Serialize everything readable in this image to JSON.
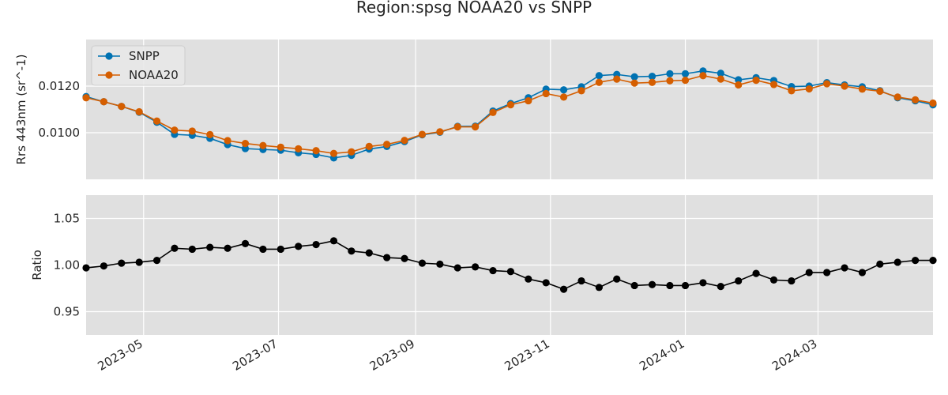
{
  "chart_data": {
    "type": "line",
    "title": "Region:spsg NOAA20 vs SNPP",
    "x": [
      "2023-04-05",
      "2023-04-13",
      "2023-04-21",
      "2023-04-29",
      "2023-05-07",
      "2023-05-15",
      "2023-05-23",
      "2023-05-31",
      "2023-06-08",
      "2023-06-16",
      "2023-06-24",
      "2023-07-02",
      "2023-07-10",
      "2023-07-18",
      "2023-07-26",
      "2023-08-03",
      "2023-08-11",
      "2023-08-19",
      "2023-08-27",
      "2023-09-04",
      "2023-09-12",
      "2023-09-20",
      "2023-09-28",
      "2023-10-06",
      "2023-10-14",
      "2023-10-22",
      "2023-10-30",
      "2023-11-07",
      "2023-11-15",
      "2023-11-23",
      "2023-12-01",
      "2023-12-09",
      "2023-12-17",
      "2023-12-25",
      "2024-01-01",
      "2024-01-09",
      "2024-01-17",
      "2024-01-25",
      "2024-02-02",
      "2024-02-10",
      "2024-02-18",
      "2024-02-26",
      "2024-03-05",
      "2024-03-13",
      "2024-03-21",
      "2024-03-29",
      "2024-04-06",
      "2024-04-14",
      "2024-04-22"
    ],
    "xticks": [
      "2023-05",
      "2023-07",
      "2023-09",
      "2023-11",
      "2024-01",
      "2024-03"
    ],
    "panels": [
      {
        "ylabel": "Rrs 443nm (sr^-1)",
        "ylim": [
          0.008,
          0.014
        ],
        "yticks": [
          "0.0100",
          "0.0120"
        ],
        "legend": "top-left",
        "series": [
          {
            "name": "SNPP",
            "color": "#0072b2",
            "values": [
              0.01155,
              0.01133,
              0.01113,
              0.01088,
              0.01045,
              0.00993,
              0.00989,
              0.00976,
              0.00949,
              0.00932,
              0.00928,
              0.00925,
              0.00914,
              0.00907,
              0.00892,
              0.00903,
              0.0093,
              0.00941,
              0.00962,
              0.00991,
              0.01002,
              0.01027,
              0.01028,
              0.01093,
              0.01125,
              0.0115,
              0.01187,
              0.01184,
              0.01197,
              0.01245,
              0.0125,
              0.0124,
              0.01242,
              0.01253,
              0.01253,
              0.01265,
              0.01255,
              0.01227,
              0.01236,
              0.01224,
              0.01198,
              0.012,
              0.01215,
              0.01205,
              0.01197,
              0.0118,
              0.0115,
              0.01137,
              0.0112
            ]
          },
          {
            "name": "NOAA20",
            "color": "#d55e00",
            "values": [
              0.0115,
              0.01133,
              0.01113,
              0.0109,
              0.0105,
              0.01011,
              0.01007,
              0.00992,
              0.00966,
              0.00954,
              0.00945,
              0.00938,
              0.00931,
              0.00923,
              0.00911,
              0.00918,
              0.00941,
              0.0095,
              0.00967,
              0.00993,
              0.01004,
              0.01025,
              0.01025,
              0.01087,
              0.0112,
              0.01137,
              0.01168,
              0.01153,
              0.0118,
              0.01216,
              0.0123,
              0.01213,
              0.01216,
              0.01223,
              0.01225,
              0.01245,
              0.0123,
              0.01205,
              0.01225,
              0.01207,
              0.0118,
              0.01188,
              0.0121,
              0.012,
              0.01187,
              0.01178,
              0.01153,
              0.01141,
              0.01127
            ]
          }
        ]
      },
      {
        "ylabel": "Ratio",
        "ylim": [
          0.925,
          1.075
        ],
        "yticks": [
          "0.95",
          "1.00",
          "1.05"
        ],
        "series": [
          {
            "name": "",
            "color": "#000000",
            "values": [
              0.997,
              0.999,
              1.002,
              1.003,
              1.005,
              1.018,
              1.017,
              1.019,
              1.018,
              1.023,
              1.017,
              1.017,
              1.02,
              1.022,
              1.026,
              1.015,
              1.013,
              1.008,
              1.007,
              1.002,
              1.001,
              0.997,
              0.998,
              0.994,
              0.993,
              0.985,
              0.981,
              0.974,
              0.983,
              0.976,
              0.985,
              0.978,
              0.979,
              0.978,
              0.978,
              0.981,
              0.977,
              0.983,
              0.991,
              0.984,
              0.983,
              0.992,
              0.992,
              0.997,
              0.992,
              1.001,
              1.003,
              1.005,
              1.005
            ]
          }
        ]
      }
    ]
  }
}
